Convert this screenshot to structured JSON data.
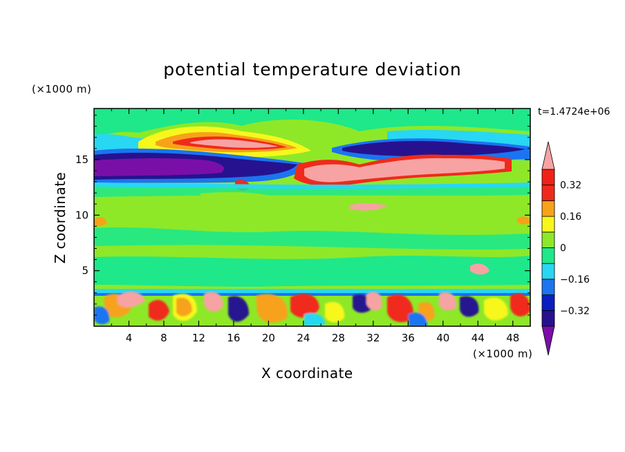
{
  "chart_data": {
    "type": "heatmap",
    "title": "potential temperature deviation",
    "xlabel": "X coordinate",
    "ylabel": "Z coordinate",
    "x_unit": "(×1000 m)",
    "y_unit": "(×1000 m)",
    "annotation": "t=1.4724e+06",
    "xlim": [
      0,
      50
    ],
    "ylim": [
      0,
      19.6
    ],
    "x_ticks": [
      4,
      8,
      12,
      16,
      20,
      24,
      28,
      32,
      36,
      40,
      44,
      48
    ],
    "y_ticks": [
      5,
      10,
      15
    ],
    "colorbar": {
      "levels": [
        -0.4,
        -0.32,
        -0.24,
        -0.16,
        -0.08,
        0,
        0.08,
        0.16,
        0.24,
        0.32,
        0.4
      ],
      "tick_values": [
        0.32,
        0.16,
        0,
        -0.16,
        -0.32
      ],
      "tick_labels": [
        "0.32",
        "0.16",
        "0",
        "−0.16",
        "−0.32"
      ],
      "colors": [
        "#7a0fa8",
        "#26128f",
        "#0a1fc0",
        "#1b74f0",
        "#28d7f2",
        "#1ee88a",
        "#8ee828",
        "#f7f71c",
        "#f7a21a",
        "#f02a1b",
        "#ef2218",
        "#f7a3a3"
      ]
    }
  }
}
